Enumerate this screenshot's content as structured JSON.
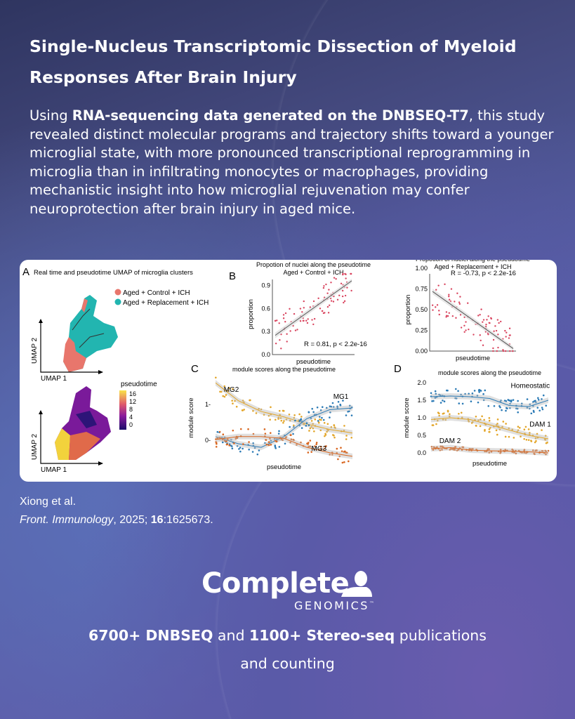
{
  "title": {
    "line1": "Single-Nucleus Transcriptomic Dissection of Myeloid",
    "line2": "Responses After Brain Injury"
  },
  "intro": {
    "prefix": "Using ",
    "highlight": "RNA-sequencing data generated on the DNBSEQ-T7",
    "suffix": ", this study revealed distinct molecular programs and trajectory shifts toward a younger microglial state, with more pronounced transcriptional reprogramming in microglia than in infiltrating monocytes or macrophages, providing mechanistic insight into how microglial rejuvenation may confer neuroprotection after brain injury in aged mice."
  },
  "figure": {
    "panelA": {
      "letter": "A",
      "title": "Real time and pseudotime UMAP of microglia clusters",
      "legend": [
        {
          "label": "Aged + Control + ICH",
          "color": "#e8766c"
        },
        {
          "label": "Aged + Replacement + ICH",
          "color": "#22b5b0"
        }
      ],
      "xlabel": "UMAP 1",
      "ylabel": "UMAP 2",
      "colorbar": {
        "title": "pseudotime",
        "ticks": [
          "16",
          "12",
          "8",
          "4",
          "0"
        ]
      }
    },
    "panelB": {
      "letter": "B"
    },
    "panelC": {
      "letter": "C"
    },
    "panelD": {
      "letter": "D"
    }
  },
  "chart_data": [
    {
      "type": "scatter",
      "id": "b1",
      "title": "Propotion of nuclei along the pseudotime",
      "subtitle": "Aged + Control + ICH",
      "xlabel": "pseudotime",
      "ylabel": "proportion",
      "ylim": [
        0,
        1.05
      ],
      "yticks": [
        "0.0",
        "0.3",
        "0.6",
        "0.9"
      ],
      "ytickvals": [
        0,
        0.3,
        0.6,
        0.9
      ],
      "trend": [
        0.25,
        0.96
      ],
      "annotation": "R = 0.81, p < 2.2e-16",
      "color": "#d9455f"
    },
    {
      "type": "scatter",
      "id": "b2",
      "title": "Propotion of nuclei along the pseudotime",
      "subtitle": "Aged + Replacement + ICH",
      "xlabel": "pseudotime",
      "ylabel": "proportion",
      "ylim": [
        0,
        1.0
      ],
      "yticks": [
        "0.00",
        "0.25",
        "0.50",
        "0.75",
        "1.00"
      ],
      "ytickvals": [
        0,
        0.25,
        0.5,
        0.75,
        1.0
      ],
      "trend": [
        0.72,
        0.03
      ],
      "annotation": "R = -0.73, p < 2.2e-16",
      "color": "#d9455f"
    },
    {
      "type": "scatter",
      "id": "c",
      "title": "module scores along the pseudotime",
      "xlabel": "pseudotime",
      "ylabel": "module score",
      "ylim": [
        -0.55,
        1.8
      ],
      "yticks": [
        "0-",
        "1-"
      ],
      "ytickvals": [
        0,
        1
      ],
      "series": [
        {
          "name": "MG2",
          "color": "#e3a62a",
          "curve": [
            1.6,
            1.1,
            0.8,
            0.65,
            0.45,
            0.3,
            0.2
          ]
        },
        {
          "name": "MG1",
          "color": "#2c7bb6",
          "curve": [
            0.1,
            -0.1,
            -0.2,
            0.1,
            0.6,
            0.85,
            0.9
          ]
        },
        {
          "name": "MG3",
          "color": "#d9661f",
          "curve": [
            0.02,
            0.1,
            0.1,
            0.05,
            -0.2,
            -0.35,
            -0.45
          ]
        }
      ]
    },
    {
      "type": "scatter",
      "id": "d",
      "title": "module scores along the pseudotime",
      "xlabel": "pseudotime",
      "ylabel": "module score",
      "ylim": [
        -0.1,
        2.1
      ],
      "yticks": [
        "0.0",
        "0.5",
        "1.0",
        "1.5",
        "2.0"
      ],
      "ytickvals": [
        0,
        0.5,
        1,
        1.5,
        2
      ],
      "series": [
        {
          "name": "Homeostatic",
          "color": "#2c7bb6",
          "curve": [
            1.6,
            1.62,
            1.6,
            1.55,
            1.35,
            1.32,
            1.5
          ]
        },
        {
          "name": "DAM 1",
          "color": "#e3a62a",
          "curve": [
            0.95,
            1.0,
            0.95,
            0.8,
            0.65,
            0.5,
            0.4
          ]
        },
        {
          "name": "DAM 2",
          "color": "#d9661f",
          "curve": [
            0.12,
            0.15,
            0.08,
            0.06,
            0.05,
            0.03,
            0.0
          ]
        }
      ]
    }
  ],
  "citation": {
    "authors": "Xiong et al.",
    "journal": "Front. Immunology",
    "rest_prefix": ", 2025; ",
    "volume": "16",
    "rest_suffix": ":1625673."
  },
  "logo": {
    "word": "Complete",
    "sub": "GENOMICS",
    "tm": "™"
  },
  "bottom": {
    "n1": "6700+ DNBSEQ",
    "mid": " and ",
    "n2": "1100+ Stereo-seq",
    "line1_end": " publications",
    "line2": "and counting"
  }
}
